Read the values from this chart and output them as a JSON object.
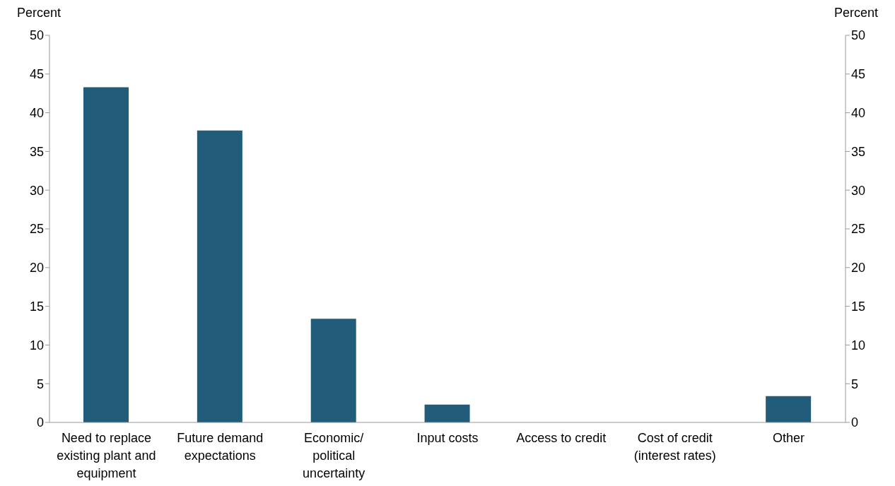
{
  "chart_data": {
    "type": "bar",
    "ylabel": "Percent",
    "y2label": "Percent",
    "categories": [
      "Need to replace existing plant and equipment",
      "Future demand expectations",
      "Economic/ political uncertainty",
      "Input costs",
      "Access to credit",
      "Cost of credit (interest rates)",
      "Other"
    ],
    "values": [
      43.3,
      37.7,
      13.4,
      2.3,
      0,
      0,
      3.4
    ],
    "color": "#215d7a",
    "ylim": [
      0,
      50
    ],
    "yticks": [
      0,
      5,
      10,
      15,
      20,
      25,
      30,
      35,
      40,
      45,
      50
    ],
    "y2lim": [
      0,
      50
    ],
    "y2ticks": [
      0,
      5,
      10,
      15,
      20,
      25,
      30,
      35,
      40,
      45,
      50
    ],
    "grid": false,
    "legend": false
  }
}
